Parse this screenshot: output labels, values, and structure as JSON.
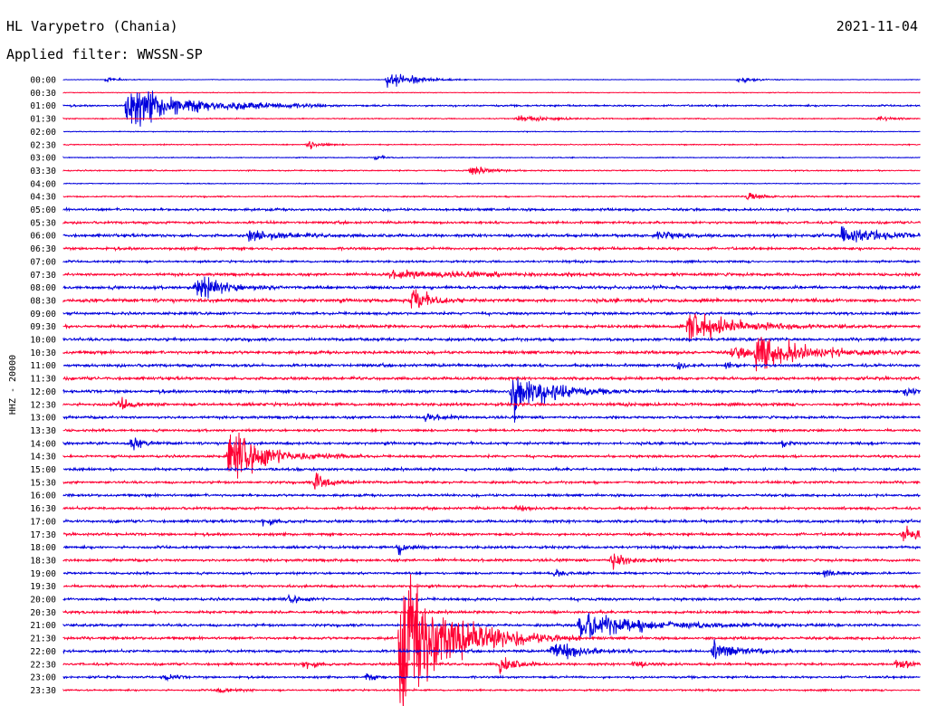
{
  "header": {
    "station": "HL Varypetro (Chania)",
    "date": "2021-11-04",
    "filter": "Applied filter: WWSSN-SP"
  },
  "chart_data": {
    "type": "helicorder",
    "ylabel": "HHZ - 20000",
    "row_labels": [
      "00:00",
      "00:30",
      "01:00",
      "01:30",
      "02:00",
      "02:30",
      "03:00",
      "03:30",
      "04:00",
      "04:30",
      "05:00",
      "05:30",
      "06:00",
      "06:30",
      "07:00",
      "07:30",
      "08:00",
      "08:30",
      "09:00",
      "09:30",
      "10:00",
      "10:30",
      "11:00",
      "11:30",
      "12:00",
      "12:30",
      "13:00",
      "13:30",
      "14:00",
      "14:30",
      "15:00",
      "15:30",
      "16:00",
      "16:30",
      "17:00",
      "17:30",
      "18:00",
      "18:30",
      "19:00",
      "19:30",
      "20:00",
      "20:30",
      "21:00",
      "21:30",
      "22:00",
      "22:30",
      "23:00",
      "23:30"
    ],
    "colors": [
      "#0000dd",
      "#ff0033"
    ],
    "noise": [
      0.3,
      0.4,
      1.0,
      0.6,
      0.5,
      0.6,
      0.5,
      0.7,
      0.5,
      0.8,
      1.4,
      1.4,
      1.7,
      1.5,
      1.2,
      1.6,
      1.8,
      2.0,
      1.5,
      1.7,
      1.7,
      1.7,
      1.7,
      1.7,
      1.7,
      1.7,
      1.5,
      1.4,
      1.5,
      1.4,
      1.5,
      1.4,
      1.4,
      1.5,
      1.6,
      1.5,
      1.5,
      1.5,
      1.3,
      1.4,
      1.5,
      1.5,
      1.5,
      1.5,
      1.5,
      1.4,
      1.2,
      1.0
    ],
    "events": [
      {
        "row": 0,
        "x": 118,
        "amp": 4,
        "dur": 10
      },
      {
        "row": 0,
        "x": 428,
        "amp": 12,
        "dur": 28
      },
      {
        "row": 0,
        "x": 815,
        "amp": 4,
        "dur": 18
      },
      {
        "row": 2,
        "x": 140,
        "amp": 28,
        "dur": 55
      },
      {
        "row": 2,
        "x": 255,
        "amp": 4,
        "dur": 40
      },
      {
        "row": 3,
        "x": 570,
        "amp": 3,
        "dur": 40
      },
      {
        "row": 3,
        "x": 970,
        "amp": 3,
        "dur": 20
      },
      {
        "row": 5,
        "x": 340,
        "amp": 6,
        "dur": 12
      },
      {
        "row": 6,
        "x": 415,
        "amp": 4,
        "dur": 8
      },
      {
        "row": 7,
        "x": 520,
        "amp": 6,
        "dur": 20
      },
      {
        "row": 9,
        "x": 825,
        "amp": 7,
        "dur": 15
      },
      {
        "row": 12,
        "x": 275,
        "amp": 6,
        "dur": 40
      },
      {
        "row": 12,
        "x": 725,
        "amp": 8,
        "dur": 18
      },
      {
        "row": 12,
        "x": 930,
        "amp": 11,
        "dur": 40
      },
      {
        "row": 15,
        "x": 430,
        "amp": 4,
        "dur": 110
      },
      {
        "row": 16,
        "x": 215,
        "amp": 18,
        "dur": 25
      },
      {
        "row": 17,
        "x": 455,
        "amp": 16,
        "dur": 18
      },
      {
        "row": 19,
        "x": 760,
        "amp": 22,
        "dur": 45
      },
      {
        "row": 21,
        "x": 808,
        "amp": 7,
        "dur": 28
      },
      {
        "row": 21,
        "x": 835,
        "amp": 22,
        "dur": 50
      },
      {
        "row": 22,
        "x": 750,
        "amp": 8,
        "dur": 5
      },
      {
        "row": 22,
        "x": 802,
        "amp": 8,
        "dur": 5
      },
      {
        "row": 24,
        "x": 565,
        "amp": 35,
        "dur": 35
      },
      {
        "row": 24,
        "x": 1000,
        "amp": 5,
        "dur": 16
      },
      {
        "row": 25,
        "x": 133,
        "amp": 8,
        "dur": 12
      },
      {
        "row": 26,
        "x": 470,
        "amp": 5,
        "dur": 15
      },
      {
        "row": 28,
        "x": 145,
        "amp": 8,
        "dur": 12
      },
      {
        "row": 28,
        "x": 865,
        "amp": 7,
        "dur": 6
      },
      {
        "row": 29,
        "x": 252,
        "amp": 32,
        "dur": 40
      },
      {
        "row": 31,
        "x": 348,
        "amp": 12,
        "dur": 18
      },
      {
        "row": 33,
        "x": 570,
        "amp": 3,
        "dur": 12
      },
      {
        "row": 34,
        "x": 290,
        "amp": 4,
        "dur": 16
      },
      {
        "row": 35,
        "x": 998,
        "amp": 9,
        "dur": 24
      },
      {
        "row": 36,
        "x": 440,
        "amp": 10,
        "dur": 10
      },
      {
        "row": 37,
        "x": 675,
        "amp": 12,
        "dur": 18
      },
      {
        "row": 38,
        "x": 612,
        "amp": 5,
        "dur": 14
      },
      {
        "row": 38,
        "x": 910,
        "amp": 4,
        "dur": 14
      },
      {
        "row": 40,
        "x": 320,
        "amp": 5,
        "dur": 12
      },
      {
        "row": 42,
        "x": 640,
        "amp": 16,
        "dur": 70
      },
      {
        "row": 43,
        "x": 442,
        "amp": 100,
        "dur": 50
      },
      {
        "row": 44,
        "x": 610,
        "amp": 14,
        "dur": 28
      },
      {
        "row": 44,
        "x": 787,
        "amp": 12,
        "dur": 28
      },
      {
        "row": 45,
        "x": 335,
        "amp": 5,
        "dur": 14
      },
      {
        "row": 45,
        "x": 552,
        "amp": 14,
        "dur": 14
      },
      {
        "row": 45,
        "x": 700,
        "amp": 5,
        "dur": 12
      },
      {
        "row": 45,
        "x": 990,
        "amp": 6,
        "dur": 18
      },
      {
        "row": 46,
        "x": 182,
        "amp": 5,
        "dur": 10
      },
      {
        "row": 46,
        "x": 405,
        "amp": 5,
        "dur": 10
      },
      {
        "row": 47,
        "x": 240,
        "amp": 4,
        "dur": 14
      }
    ]
  }
}
